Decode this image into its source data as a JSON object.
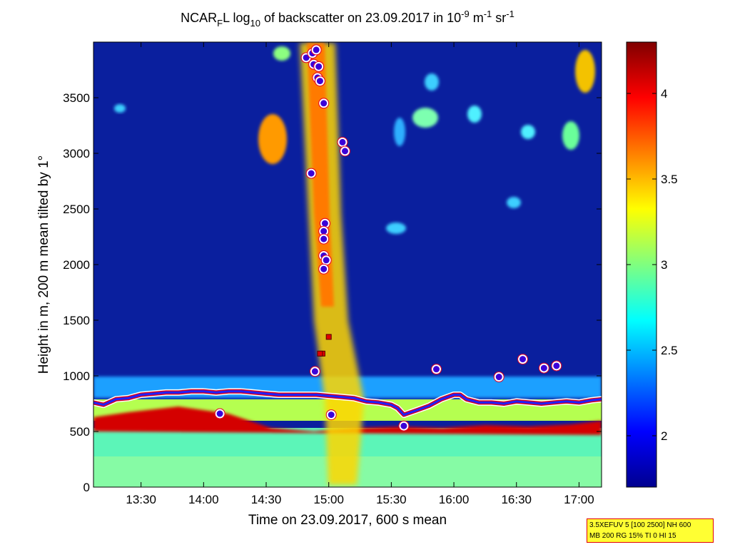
{
  "chart_data": {
    "type": "heatmap",
    "title": {
      "prefix": "NCAR",
      "sub1": "F",
      "mid": "L log",
      "sub2": "10",
      "mid2": " of backscatter on 23.09.2017 in 10",
      "sup1": "-9",
      "mid3": " m",
      "sup2": "-1",
      "mid4": " sr",
      "sup3": "-1"
    },
    "xlabel": "Time on 23.09.2017, 600 s mean",
    "ylabel": "Height in m, 200 m mean tilted by 1°",
    "x_range_hours": [
      13.12,
      17.18
    ],
    "y_range_m": [
      0,
      4000
    ],
    "x_ticks": [
      {
        "h": 13.5,
        "label": "13:30"
      },
      {
        "h": 14.0,
        "label": "14:00"
      },
      {
        "h": 14.5,
        "label": "14:30"
      },
      {
        "h": 15.0,
        "label": "15:00"
      },
      {
        "h": 15.5,
        "label": "15:30"
      },
      {
        "h": 16.0,
        "label": "16:00"
      },
      {
        "h": 16.5,
        "label": "16:30"
      },
      {
        "h": 17.0,
        "label": "17:00"
      }
    ],
    "y_ticks": [
      0,
      500,
      1000,
      1500,
      2000,
      2500,
      3000,
      3500
    ],
    "colorbar": {
      "range": [
        1.7,
        4.3
      ],
      "ticks": [
        "2",
        "2.5",
        "3",
        "3.5",
        "4"
      ],
      "colormap": "jet"
    },
    "boundary_layer_height_m": [
      [
        13.12,
        760
      ],
      [
        13.2,
        740
      ],
      [
        13.3,
        790
      ],
      [
        13.4,
        800
      ],
      [
        13.5,
        830
      ],
      [
        13.6,
        840
      ],
      [
        13.7,
        850
      ],
      [
        13.8,
        850
      ],
      [
        13.9,
        860
      ],
      [
        14.0,
        860
      ],
      [
        14.1,
        850
      ],
      [
        14.2,
        860
      ],
      [
        14.3,
        860
      ],
      [
        14.4,
        850
      ],
      [
        14.5,
        840
      ],
      [
        14.6,
        830
      ],
      [
        14.7,
        830
      ],
      [
        14.8,
        830
      ],
      [
        14.9,
        830
      ],
      [
        15.0,
        820
      ],
      [
        15.1,
        810
      ],
      [
        15.2,
        800
      ],
      [
        15.3,
        770
      ],
      [
        15.4,
        760
      ],
      [
        15.5,
        740
      ],
      [
        15.55,
        710
      ],
      [
        15.6,
        650
      ],
      [
        15.7,
        690
      ],
      [
        15.8,
        730
      ],
      [
        15.9,
        790
      ],
      [
        16.0,
        830
      ],
      [
        16.05,
        830
      ],
      [
        16.1,
        790
      ],
      [
        16.2,
        760
      ],
      [
        16.3,
        760
      ],
      [
        16.4,
        750
      ],
      [
        16.5,
        770
      ],
      [
        16.6,
        760
      ],
      [
        16.7,
        750
      ],
      [
        16.8,
        760
      ],
      [
        16.9,
        770
      ],
      [
        17.0,
        760
      ],
      [
        17.1,
        780
      ],
      [
        17.18,
        790
      ]
    ],
    "cloud_points_m": [
      [
        14.82,
        3860
      ],
      [
        14.87,
        3900
      ],
      [
        14.9,
        3930
      ],
      [
        14.88,
        3800
      ],
      [
        14.92,
        3780
      ],
      [
        14.91,
        3680
      ],
      [
        14.93,
        3650
      ],
      [
        14.96,
        3450
      ],
      [
        14.86,
        2820
      ],
      [
        14.97,
        2370
      ],
      [
        14.96,
        2300
      ],
      [
        14.96,
        2230
      ],
      [
        14.96,
        2080
      ],
      [
        14.98,
        2040
      ],
      [
        14.96,
        1960
      ],
      [
        15.11,
        3100
      ],
      [
        15.13,
        3020
      ],
      [
        14.89,
        1040
      ],
      [
        15.02,
        650
      ],
      [
        14.13,
        660
      ],
      [
        15.86,
        1060
      ],
      [
        16.36,
        990
      ],
      [
        16.55,
        1150
      ],
      [
        16.72,
        1070
      ],
      [
        16.82,
        1090
      ],
      [
        15.6,
        550
      ]
    ],
    "cloud_base_markers_m": [
      [
        14.95,
        1200
      ],
      [
        15.0,
        1350
      ],
      [
        14.93,
        1200
      ]
    ]
  },
  "info_box": {
    "line1": "3.5XEFUV 5 [100 2500] NH 600",
    "line2": "MB 200 RG 15% TI 0 HI 15"
  }
}
